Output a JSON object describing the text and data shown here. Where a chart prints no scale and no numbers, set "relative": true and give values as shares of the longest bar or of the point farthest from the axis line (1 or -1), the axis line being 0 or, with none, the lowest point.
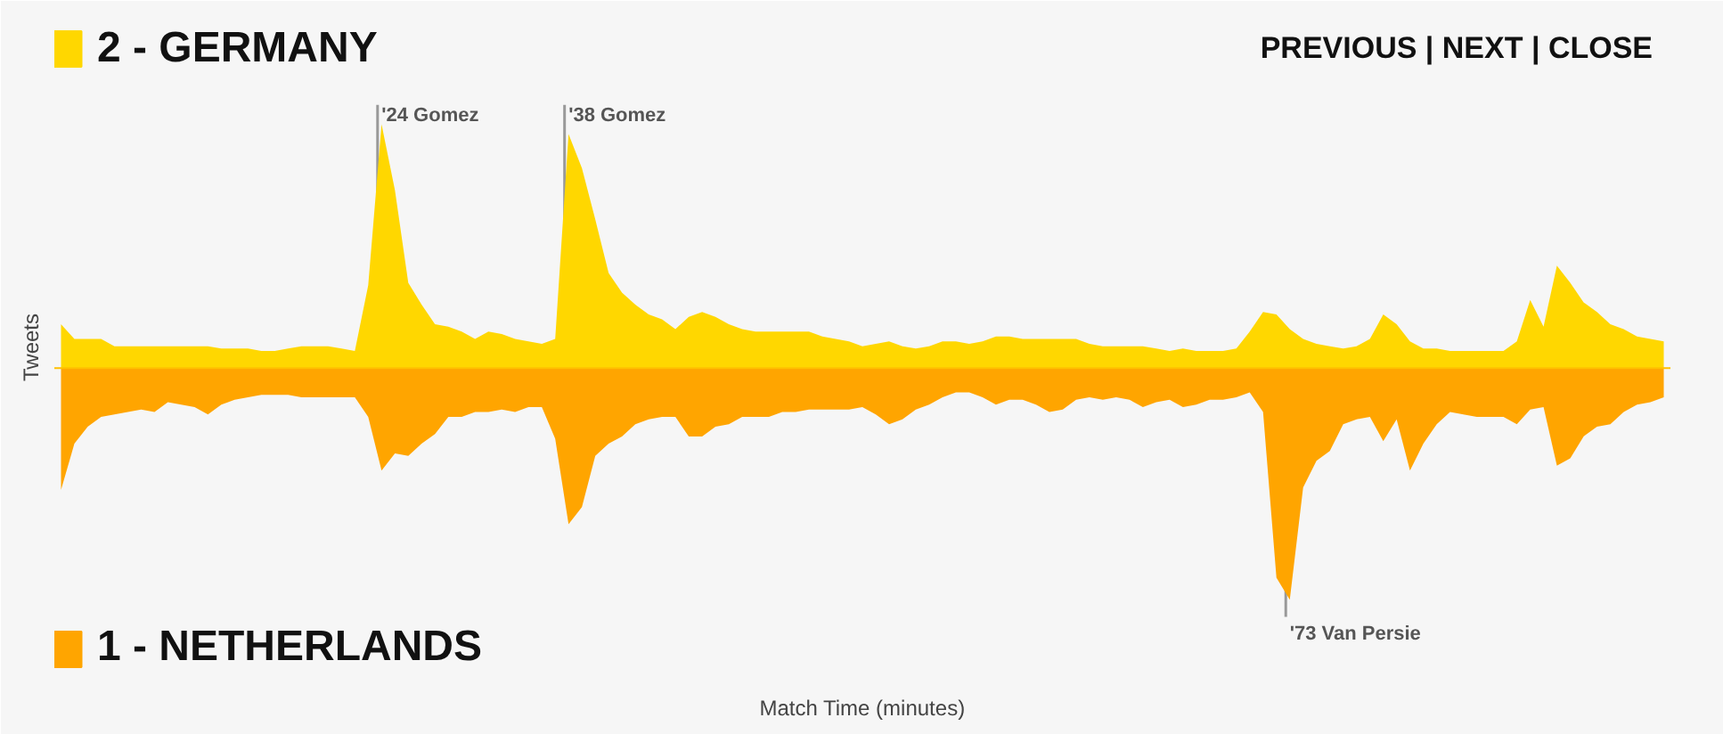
{
  "chart_data": {
    "type": "area",
    "relative": true,
    "xlabel": "Match Time (minutes)",
    "ylabel": "Tweets",
    "legend": "left",
    "grid": false,
    "ref_lines": [
      {
        "axis": "y",
        "value": 0,
        "color": "#ffc000"
      }
    ],
    "categories": [
      null,
      null,
      null,
      null,
      null,
      null,
      null,
      null,
      null,
      null,
      null,
      null,
      null,
      null,
      null,
      null,
      null,
      null,
      null,
      null,
      null,
      null,
      null,
      null,
      null,
      null,
      null,
      null,
      null,
      null,
      null,
      null,
      null,
      null,
      null,
      null,
      null,
      null,
      null,
      null,
      null,
      null,
      null,
      null,
      null,
      null,
      null,
      null,
      null,
      null,
      null,
      null,
      null,
      null,
      null,
      null,
      null,
      null,
      null,
      null,
      null,
      null,
      null,
      null,
      null,
      null,
      null,
      null,
      null,
      null,
      null,
      null,
      null,
      null,
      null,
      null,
      null,
      null,
      null,
      null,
      null,
      null,
      null,
      null,
      null,
      null,
      null,
      null,
      null,
      null,
      null,
      null,
      null,
      null,
      null,
      null,
      null,
      null,
      null,
      null,
      null,
      null,
      null,
      null,
      null,
      null,
      null,
      null,
      null,
      null,
      null,
      null,
      null,
      null,
      null,
      null,
      null,
      null,
      null,
      null,
      null
    ],
    "series": [
      {
        "name": "2 - GERMANY",
        "color": "#ffd700",
        "values": [
          0.18,
          0.12,
          0.12,
          0.12,
          0.09,
          0.09,
          0.09,
          0.09,
          0.09,
          0.09,
          0.09,
          0.09,
          0.08,
          0.08,
          0.08,
          0.07,
          0.07,
          0.08,
          0.09,
          0.09,
          0.09,
          0.08,
          0.07,
          0.34,
          1,
          0.73,
          0.35,
          0.26,
          0.18,
          0.17,
          0.15,
          0.12,
          0.15,
          0.14,
          0.12,
          0.11,
          0.1,
          0.12,
          0.96,
          0.82,
          0.61,
          0.39,
          0.31,
          0.26,
          0.22,
          0.2,
          0.16,
          0.21,
          0.23,
          0.21,
          0.18,
          0.16,
          0.15,
          0.15,
          0.15,
          0.15,
          0.15,
          0.13,
          0.12,
          0.11,
          0.09,
          0.1,
          0.11,
          0.09,
          0.08,
          0.09,
          0.11,
          0.11,
          0.1,
          0.11,
          0.13,
          0.13,
          0.12,
          0.12,
          0.12,
          0.12,
          0.12,
          0.1,
          0.09,
          0.09,
          0.09,
          0.09,
          0.08,
          0.07,
          0.08,
          0.07,
          0.07,
          0.07,
          0.08,
          0.15,
          0.23,
          0.22,
          0.16,
          0.12,
          0.1,
          0.09,
          0.08,
          0.09,
          0.12,
          0.22,
          0.18,
          0.11,
          0.08,
          0.08,
          0.07,
          0.07,
          0.07,
          0.07,
          0.07,
          0.11,
          0.28,
          0.17,
          0.42,
          0.35,
          0.27,
          0.23,
          0.18,
          0.16,
          0.13,
          0.12,
          0.11
        ]
      },
      {
        "name": "1 - NETHERLANDS",
        "color": "#ffa500",
        "values": [
          -0.5,
          -0.31,
          -0.24,
          -0.2,
          -0.19,
          -0.18,
          -0.17,
          -0.18,
          -0.14,
          -0.15,
          -0.16,
          -0.19,
          -0.15,
          -0.13,
          -0.12,
          -0.11,
          -0.11,
          -0.11,
          -0.12,
          -0.12,
          -0.12,
          -0.12,
          -0.12,
          -0.2,
          -0.42,
          -0.35,
          -0.36,
          -0.31,
          -0.27,
          -0.2,
          -0.2,
          -0.18,
          -0.18,
          -0.17,
          -0.18,
          -0.16,
          -0.16,
          -0.29,
          -0.64,
          -0.57,
          -0.36,
          -0.31,
          -0.28,
          -0.23,
          -0.21,
          -0.2,
          -0.2,
          -0.28,
          -0.28,
          -0.24,
          -0.23,
          -0.2,
          -0.2,
          -0.2,
          -0.18,
          -0.18,
          -0.17,
          -0.17,
          -0.17,
          -0.17,
          -0.16,
          -0.19,
          -0.23,
          -0.21,
          -0.17,
          -0.15,
          -0.12,
          -0.1,
          -0.1,
          -0.12,
          -0.15,
          -0.13,
          -0.13,
          -0.15,
          -0.18,
          -0.17,
          -0.13,
          -0.12,
          -0.13,
          -0.12,
          -0.13,
          -0.16,
          -0.14,
          -0.13,
          -0.16,
          -0.15,
          -0.13,
          -0.13,
          -0.12,
          -0.1,
          -0.18,
          -0.86,
          -0.95,
          -0.49,
          -0.38,
          -0.34,
          -0.23,
          -0.21,
          -0.2,
          -0.3,
          -0.21,
          -0.42,
          -0.31,
          -0.23,
          -0.18,
          -0.19,
          -0.2,
          -0.2,
          -0.2,
          -0.23,
          -0.17,
          -0.16,
          -0.4,
          -0.37,
          -0.28,
          -0.24,
          -0.23,
          -0.18,
          -0.15,
          -0.14,
          -0.12
        ]
      }
    ],
    "annotations": [
      "'24 Gomez",
      "'38 Gomez",
      "'73 Van Persie",
      "PREVIOUS | NEXT | CLOSE"
    ]
  }
}
